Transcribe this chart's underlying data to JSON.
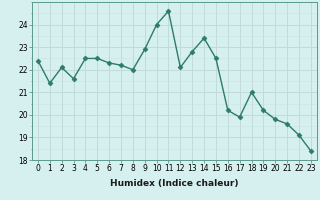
{
  "x": [
    0,
    1,
    2,
    3,
    4,
    5,
    6,
    7,
    8,
    9,
    10,
    11,
    12,
    13,
    14,
    15,
    16,
    17,
    18,
    19,
    20,
    21,
    22,
    23
  ],
  "y": [
    22.4,
    21.4,
    22.1,
    21.6,
    22.5,
    22.5,
    22.3,
    22.2,
    22.0,
    22.9,
    24.0,
    24.6,
    22.1,
    22.8,
    23.4,
    22.5,
    20.2,
    19.9,
    21.0,
    20.2,
    19.8,
    19.6,
    19.1,
    18.4
  ],
  "line_color": "#2d7a6e",
  "marker": "D",
  "marker_size": 2.5,
  "bg_color": "#d6f0ef",
  "grid_major_color": "#c0dbd8",
  "grid_minor_color": "#c8e4e2",
  "xlabel": "Humidex (Indice chaleur)",
  "ylim": [
    18,
    25
  ],
  "xlim": [
    -0.5,
    23.5
  ],
  "yticks": [
    18,
    19,
    20,
    21,
    22,
    23,
    24
  ],
  "xticks": [
    0,
    1,
    2,
    3,
    4,
    5,
    6,
    7,
    8,
    9,
    10,
    11,
    12,
    13,
    14,
    15,
    16,
    17,
    18,
    19,
    20,
    21,
    22,
    23
  ],
  "xlabel_fontsize": 6.5,
  "tick_fontsize": 5.5,
  "line_width": 1.0
}
